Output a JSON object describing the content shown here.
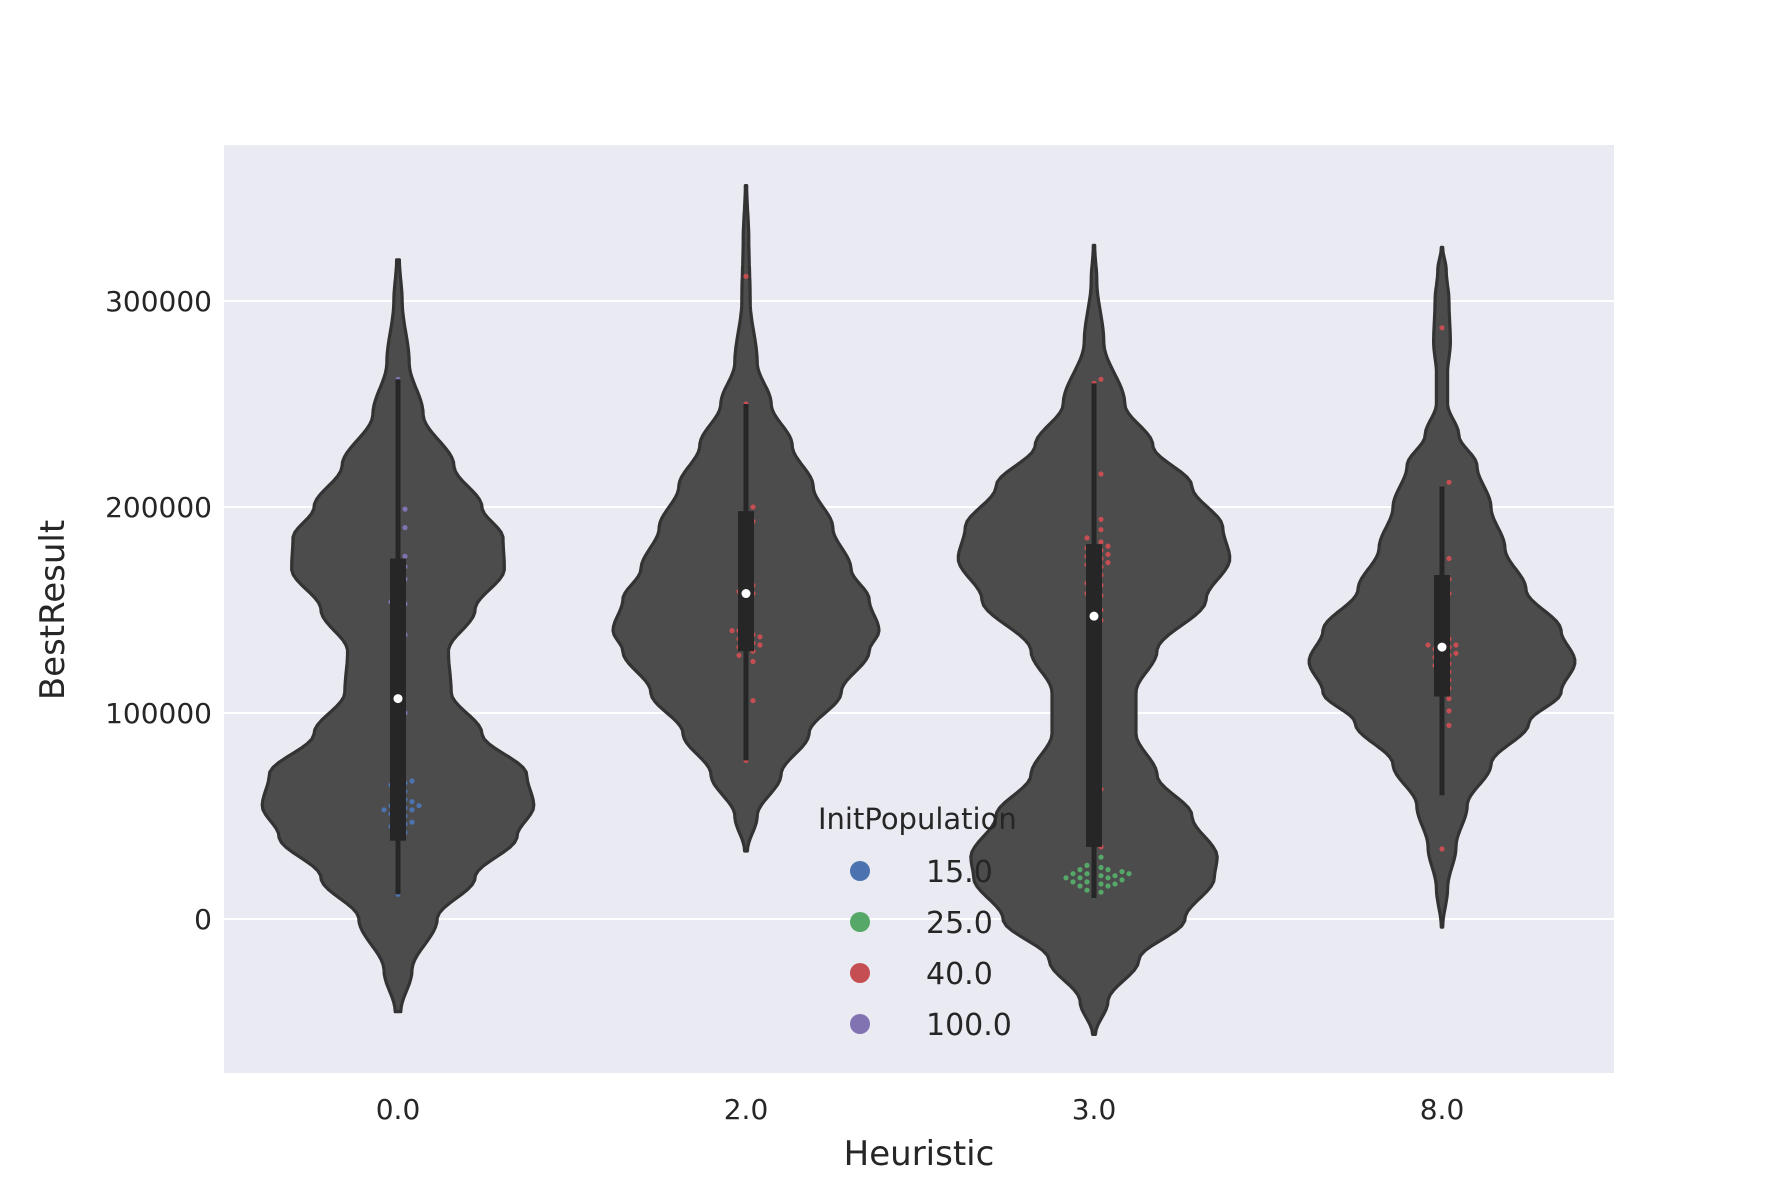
{
  "chart_data": {
    "type": "violin",
    "title": "",
    "xlabel": "Heuristic",
    "ylabel": "BestResult",
    "categories": [
      "0.0",
      "2.0",
      "3.0",
      "8.0"
    ],
    "ylim": [
      -75000,
      375000
    ],
    "yticks": [
      0,
      100000,
      200000,
      300000
    ],
    "ytick_labels": [
      "0",
      "100000",
      "200000",
      "300000"
    ],
    "grid": true,
    "legend": {
      "title": "InitPopulation",
      "placement": "lower center",
      "entries": [
        {
          "label": "15.0",
          "color": "#4c72b0"
        },
        {
          "label": "25.0",
          "color": "#55a868"
        },
        {
          "label": "40.0",
          "color": "#c44e52"
        },
        {
          "label": "100.0",
          "color": "#8172b2"
        }
      ]
    },
    "colors": {
      "axes_background": "#eaeaf2",
      "grid": "#ffffff",
      "violin_fill": "#4c4c4c",
      "violin_edge": "#333333",
      "box": "#262626",
      "median": "#ffffff"
    },
    "violins": [
      {
        "category": "0.0",
        "range": [
          -45000,
          320000
        ],
        "profile": [
          [
            -45000,
            0.02
          ],
          [
            -25000,
            0.1
          ],
          [
            0,
            0.28
          ],
          [
            20000,
            0.55
          ],
          [
            40000,
            0.85
          ],
          [
            55000,
            0.97
          ],
          [
            70000,
            0.92
          ],
          [
            90000,
            0.6
          ],
          [
            110000,
            0.38
          ],
          [
            130000,
            0.36
          ],
          [
            150000,
            0.55
          ],
          [
            170000,
            0.76
          ],
          [
            185000,
            0.75
          ],
          [
            200000,
            0.6
          ],
          [
            220000,
            0.4
          ],
          [
            245000,
            0.18
          ],
          [
            270000,
            0.08
          ],
          [
            300000,
            0.03
          ],
          [
            320000,
            0.01
          ]
        ],
        "box": {
          "q1": 38000,
          "median": 107000,
          "q3": 175000,
          "whisker_low": 12000,
          "whisker_high": 262000
        },
        "points": [
          {
            "group": "15.0",
            "values": [
              12000,
              18000,
              24000,
              30000,
              36000,
              40000,
              42000,
              44000,
              45000,
              46000,
              47000,
              48000,
              50000,
              51000,
              52000,
              53000,
              53000,
              54000,
              55000,
              55000,
              56000,
              57000,
              58000,
              60000,
              62000,
              64000,
              65000,
              66000,
              67000,
              68000
            ]
          },
          {
            "group": "100.0",
            "values": [
              92000,
              97000,
              100000,
              104000,
              110000,
              118000,
              123000,
              127000,
              136000,
              138000,
              151000,
              153000,
              154000,
              157000,
              162000,
              165000,
              168000,
              171000,
              174000,
              176000,
              183000,
              187000,
              190000,
              193000,
              198000,
              199000,
              205000,
              210000,
              214000,
              220000,
              226000,
              262000
            ]
          }
        ]
      },
      {
        "category": "2.0",
        "range": [
          33000,
          356000
        ],
        "profile": [
          [
            33000,
            0.01
          ],
          [
            50000,
            0.08
          ],
          [
            70000,
            0.25
          ],
          [
            90000,
            0.45
          ],
          [
            110000,
            0.68
          ],
          [
            130000,
            0.88
          ],
          [
            140000,
            0.95
          ],
          [
            155000,
            0.88
          ],
          [
            170000,
            0.75
          ],
          [
            190000,
            0.62
          ],
          [
            210000,
            0.48
          ],
          [
            230000,
            0.33
          ],
          [
            250000,
            0.18
          ],
          [
            270000,
            0.08
          ],
          [
            300000,
            0.03
          ],
          [
            330000,
            0.02
          ],
          [
            356000,
            0.005
          ]
        ],
        "box": {
          "q1": 130000,
          "median": 158000,
          "q3": 198000,
          "whisker_low": 77000,
          "whisker_high": 250000
        },
        "points": [
          {
            "group": "40.0",
            "values": [
              77000,
              84000,
              88000,
              97000,
              103000,
              106000,
              112000,
              118000,
              122000,
              125000,
              127000,
              128000,
              130000,
              131000,
              132000,
              133000,
              134000,
              135000,
              136000,
              137000,
              138000,
              139000,
              140000,
              140000,
              150000,
              156000,
              158000,
              159000,
              160000,
              162000,
              165000,
              173000,
              180000,
              186000,
              190000,
              193000,
              197000,
              200000,
              203000,
              210000,
              215000,
              222000,
              228000,
              233000,
              240000,
              245000,
              250000,
              312000
            ]
          }
        ]
      },
      {
        "category": "3.0",
        "range": [
          -56000,
          327000
        ],
        "profile": [
          [
            -56000,
            0.01
          ],
          [
            -40000,
            0.1
          ],
          [
            -20000,
            0.32
          ],
          [
            0,
            0.65
          ],
          [
            20000,
            0.86
          ],
          [
            30000,
            0.88
          ],
          [
            50000,
            0.7
          ],
          [
            70000,
            0.45
          ],
          [
            90000,
            0.3
          ],
          [
            110000,
            0.3
          ],
          [
            130000,
            0.45
          ],
          [
            155000,
            0.8
          ],
          [
            175000,
            0.97
          ],
          [
            190000,
            0.92
          ],
          [
            210000,
            0.7
          ],
          [
            230000,
            0.42
          ],
          [
            250000,
            0.22
          ],
          [
            280000,
            0.07
          ],
          [
            310000,
            0.02
          ],
          [
            327000,
            0.005
          ]
        ],
        "box": {
          "q1": 35000,
          "median": 147000,
          "q3": 182000,
          "whisker_low": 10000,
          "whisker_high": 260000
        },
        "points": [
          {
            "group": "25.0",
            "values": [
              11000,
              13000,
              14000,
              15000,
              16000,
              16000,
              17000,
              17000,
              18000,
              18000,
              19000,
              19000,
              20000,
              20000,
              20000,
              21000,
              21000,
              22000,
              22000,
              22000,
              23000,
              23000,
              24000,
              24000,
              25000,
              26000,
              28000,
              30000,
              36000
            ]
          },
          {
            "group": "40.0",
            "values": [
              35000,
              60000,
              63000,
              65000,
              71000,
              75000,
              80000,
              110000,
              124000,
              130000,
              137000,
              142000,
              145000,
              147000,
              150000,
              155000,
              157000,
              158000,
              160000,
              162000,
              163000,
              165000,
              167000,
              170000,
              171000,
              172000,
              173000,
              174000,
              175000,
              176000,
              177000,
              178000,
              179000,
              180000,
              181000,
              182000,
              183000,
              185000,
              187000,
              189000,
              192000,
              194000,
              196000,
              200000,
              205000,
              210000,
              214000,
              216000,
              225000,
              234000,
              245000,
              250000,
              256000,
              260000,
              262000
            ]
          }
        ]
      },
      {
        "category": "8.0",
        "range": [
          -4000,
          326000
        ],
        "profile": [
          [
            -4000,
            0.005
          ],
          [
            15000,
            0.04
          ],
          [
            35000,
            0.1
          ],
          [
            55000,
            0.18
          ],
          [
            75000,
            0.35
          ],
          [
            95000,
            0.62
          ],
          [
            110000,
            0.85
          ],
          [
            125000,
            0.95
          ],
          [
            140000,
            0.85
          ],
          [
            160000,
            0.6
          ],
          [
            180000,
            0.45
          ],
          [
            200000,
            0.35
          ],
          [
            220000,
            0.25
          ],
          [
            235000,
            0.12
          ],
          [
            250000,
            0.04
          ],
          [
            265000,
            0.04
          ],
          [
            280000,
            0.06
          ],
          [
            300000,
            0.05
          ],
          [
            315000,
            0.03
          ],
          [
            326000,
            0.005
          ]
        ],
        "box": {
          "q1": 108000,
          "median": 132000,
          "q3": 167000,
          "whisker_low": 60000,
          "whisker_high": 210000
        },
        "points": [
          {
            "group": "40.0",
            "values": [
              34000,
              83000,
              88000,
              92000,
              94000,
              98000,
              101000,
              104000,
              107000,
              110000,
              112000,
              114000,
              116000,
              118000,
              120000,
              122000,
              123000,
              124000,
              126000,
              127000,
              128000,
              129000,
              130000,
              131000,
              132000,
              133000,
              133000,
              134000,
              136000,
              140000,
              145000,
              150000,
              155000,
              158000,
              162000,
              165000,
              168000,
              172000,
              175000,
              180000,
              186000,
              192000,
              197000,
              203000,
              209000,
              212000,
              287000
            ]
          }
        ]
      }
    ]
  }
}
